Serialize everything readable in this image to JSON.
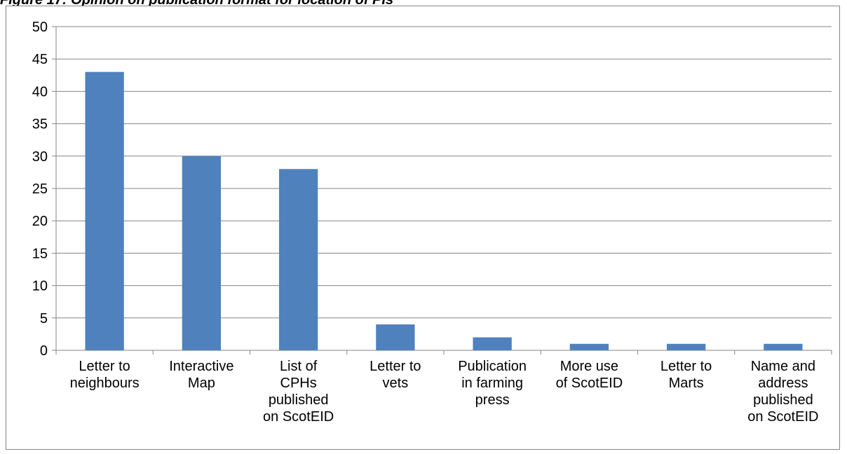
{
  "caption": "Figure 17: Opinion on publication format for location of PIs",
  "colors": {
    "bar": "#4F81BD",
    "grid": "#868686",
    "axis": "#868686"
  },
  "chart_data": {
    "type": "bar",
    "title": "",
    "xlabel": "",
    "ylabel": "",
    "ylim": [
      0,
      50
    ],
    "yticks": [
      0,
      5,
      10,
      15,
      20,
      25,
      30,
      35,
      40,
      45,
      50
    ],
    "grid": true,
    "legend": "none",
    "categories": [
      [
        "Letter to",
        "neighbours"
      ],
      [
        "Interactive",
        "Map"
      ],
      [
        "List of",
        "CPHs",
        "published",
        "on ScotEID"
      ],
      [
        "Letter to",
        "vets"
      ],
      [
        "Publication",
        "in farming",
        "press"
      ],
      [
        "More use",
        "of ScotEID"
      ],
      [
        "Letter to",
        "Marts"
      ],
      [
        "Name and",
        "address",
        "published",
        "on ScotEID"
      ]
    ],
    "values": [
      43,
      30,
      28,
      4,
      2,
      1,
      1,
      1
    ]
  }
}
